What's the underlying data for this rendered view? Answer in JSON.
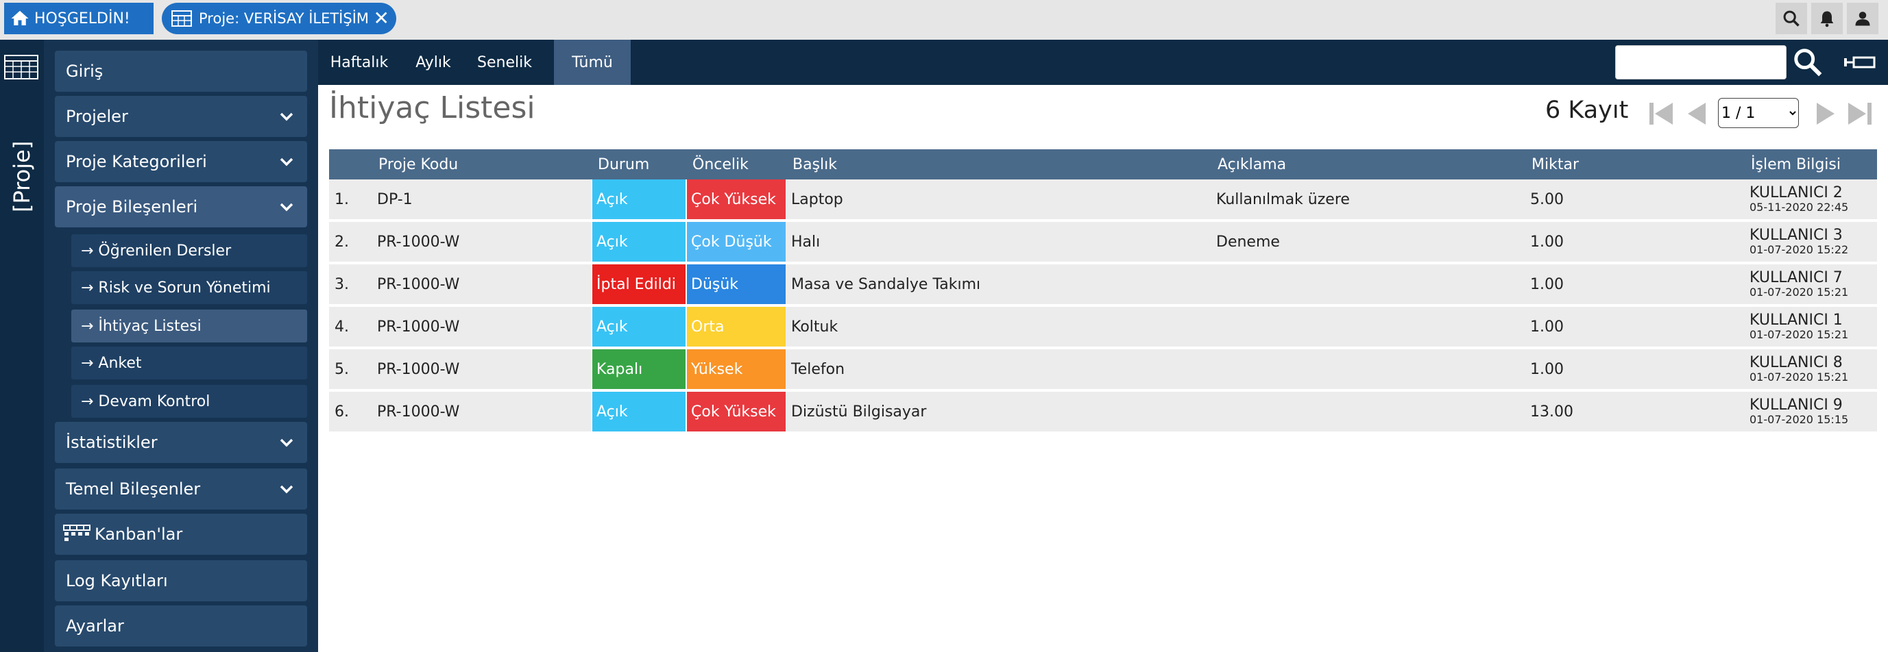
{
  "topbar": {
    "home_label": "HOŞGELDİN!",
    "project_tab_label": "Proje: VERİSAY İLETİŞİM",
    "close_glyph": "✕",
    "icons": [
      "search-icon",
      "bell-icon",
      "user-icon"
    ]
  },
  "rail": {
    "label": "[Proje]"
  },
  "sidebar": {
    "items": [
      {
        "label": "Giriş"
      },
      {
        "label": "Projeler"
      },
      {
        "label": "Proje Kategorileri"
      },
      {
        "label": "Proje Bileşenleri"
      },
      {
        "label": "İstatistikler"
      },
      {
        "label": "Temel Bileşenler"
      },
      {
        "label": "Kanban'lar"
      },
      {
        "label": "Log Kayıtları"
      },
      {
        "label": "Ayarlar"
      }
    ],
    "subitems": [
      {
        "label": "→ Öğrenilen Dersler"
      },
      {
        "label": "→ Risk ve Sorun Yönetimi"
      },
      {
        "label": "→ İhtiyaç Listesi"
      },
      {
        "label": "→ Anket"
      },
      {
        "label": "→ Devam Kontrol"
      }
    ]
  },
  "filters": {
    "tabs": [
      {
        "label": "Haftalık"
      },
      {
        "label": "Aylık"
      },
      {
        "label": "Senelik"
      },
      {
        "label": "Tümü"
      }
    ],
    "active": "Tümü",
    "search_value": ""
  },
  "page": {
    "title": "İhtiyaç Listesi",
    "record_count": "6 Kayıt",
    "page_selector": "1 / 1"
  },
  "table": {
    "headers": [
      "",
      "Proje Kodu",
      "Durum",
      "Öncelik",
      "Başlık",
      "Açıklama",
      "Miktar",
      "İşlem Bilgisi"
    ],
    "rows": [
      {
        "no": "1.",
        "code": "DP-1",
        "status": "Açık",
        "priority": "Çok Yüksek",
        "title": "Laptop",
        "desc": "Kullanılmak üzere",
        "qty": "5.00",
        "user": "KULLANICI 2",
        "time": "05-11-2020 22:45"
      },
      {
        "no": "2.",
        "code": "PR-1000-W",
        "status": "Açık",
        "priority": "Çok Düşük",
        "title": "Halı",
        "desc": "Deneme",
        "qty": "1.00",
        "user": "KULLANICI 3",
        "time": "01-07-2020 15:22"
      },
      {
        "no": "3.",
        "code": "PR-1000-W",
        "status": "İptal Edildi",
        "priority": "Düşük",
        "title": "Masa ve Sandalye Takımı",
        "desc": "",
        "qty": "1.00",
        "user": "KULLANICI 7",
        "time": "01-07-2020 15:21"
      },
      {
        "no": "4.",
        "code": "PR-1000-W",
        "status": "Açık",
        "priority": "Orta",
        "title": "Koltuk",
        "desc": "",
        "qty": "1.00",
        "user": "KULLANICI 1",
        "time": "01-07-2020 15:21"
      },
      {
        "no": "5.",
        "code": "PR-1000-W",
        "status": "Kapalı",
        "priority": "Yüksek",
        "title": "Telefon",
        "desc": "",
        "qty": "1.00",
        "user": "KULLANICI 8",
        "time": "01-07-2020 15:21"
      },
      {
        "no": "6.",
        "code": "PR-1000-W",
        "status": "Açık",
        "priority": "Çok Yüksek",
        "title": "Dizüstü Bilgisayar",
        "desc": "",
        "qty": "13.00",
        "user": "KULLANICI 9",
        "time": "01-07-2020 15:15"
      }
    ]
  },
  "colors": {
    "accent": "#1e6fc3",
    "dark_nav": "#0e2a44",
    "status": {
      "Açık": "#38c3f5",
      "İptal Edildi": "#e8201e",
      "Kapalı": "#37a546"
    },
    "priority": {
      "Çok Yüksek": "#e8393f",
      "Çok Düşük": "#52b8f5",
      "Düşük": "#2a86e0",
      "Orta": "#fcd131",
      "Yüksek": "#fa9426"
    }
  }
}
